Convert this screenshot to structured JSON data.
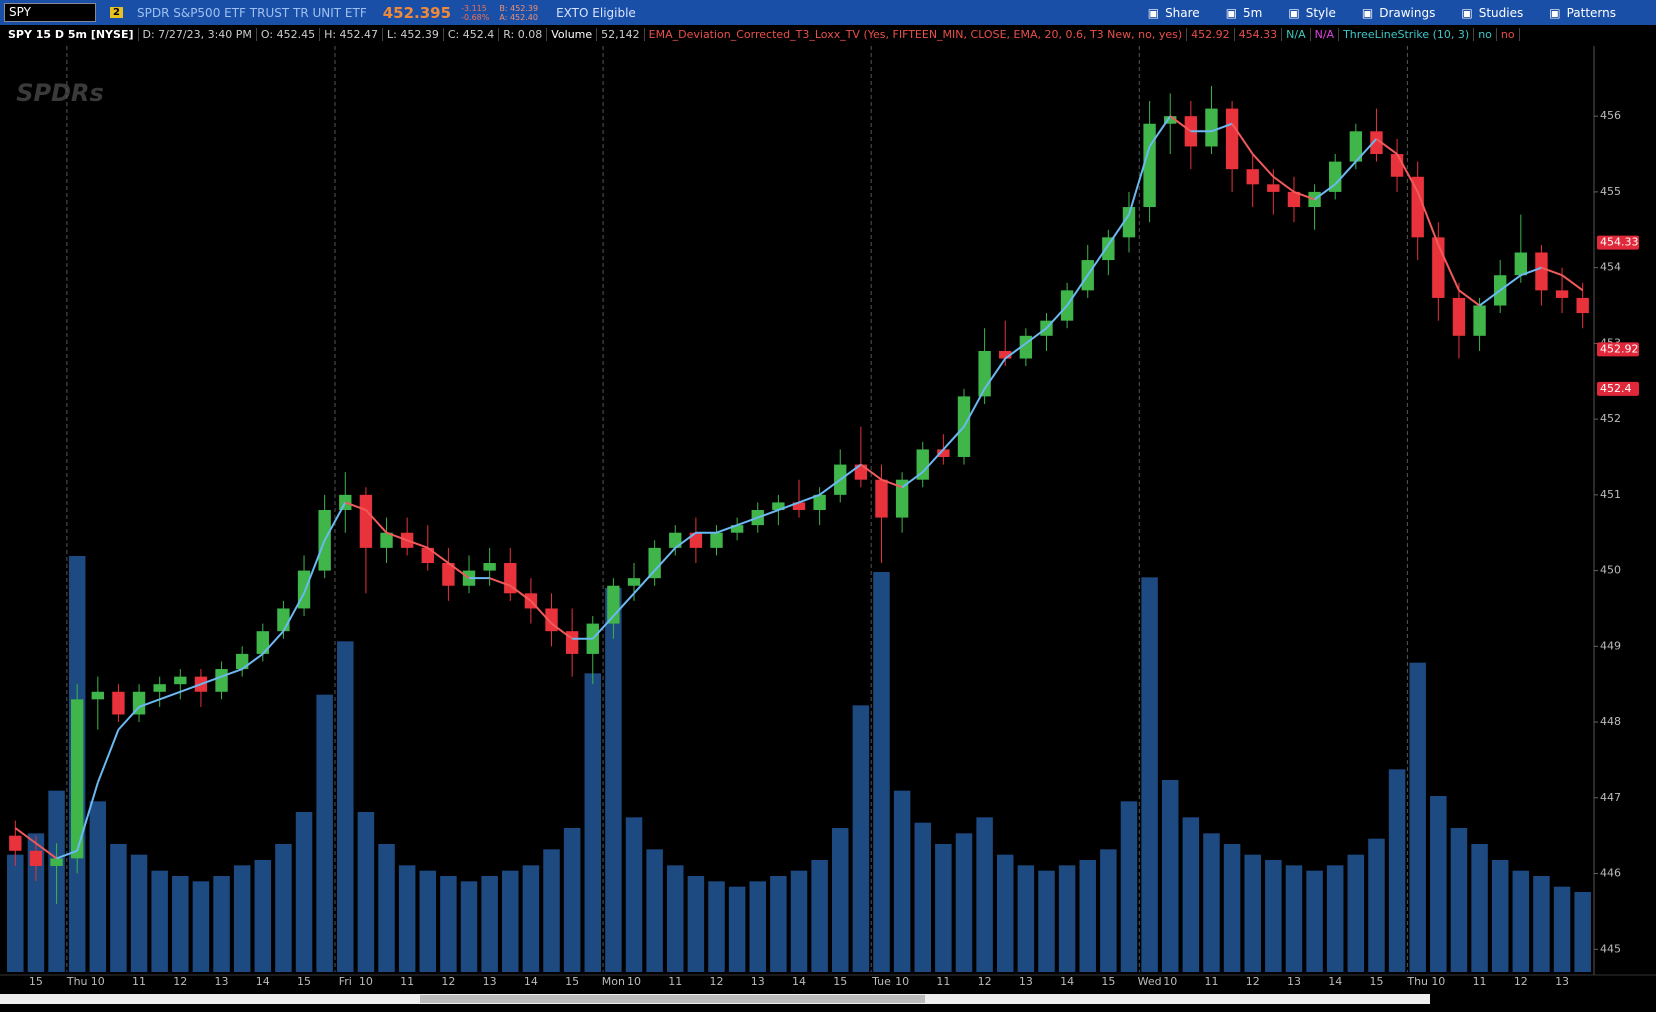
{
  "toolbar": {
    "symbol": "SPY",
    "link_badge": "2",
    "description": "SPDR S&P500 ETF TRUST TR UNIT ETF",
    "last": "452.395",
    "change": "-3.115",
    "change_pct": "-0.68%",
    "bid": "B: 452.39",
    "ask": "A: 452.40",
    "exto": "EXTO Eligible",
    "buttons": [
      "Share",
      "5m",
      "Style",
      "Drawings",
      "Studies",
      "Patterns"
    ]
  },
  "info_bar": {
    "symbol": "SPY 15 D 5m [NYSE]",
    "items": [
      "D: 7/27/23, 3:40 PM",
      "O: 452.45",
      "H: 452.47",
      "L: 452.39",
      "C: 452.4",
      "R: 0.08"
    ],
    "volume_label": "Volume",
    "volume_value": "52,142",
    "study": "EMA_Deviation_Corrected_T3_Loxx_TV (Yes, FIFTEEN_MIN, CLOSE, EMA, 20, 0.6, T3 New, no, yes)",
    "study_values": [
      "452.92",
      "454.33"
    ],
    "na": [
      "N/A",
      "N/A"
    ],
    "strike": "ThreeLineStrike (10, 3)",
    "strike_values": [
      "no",
      "no"
    ]
  },
  "watermark": "SPDRs",
  "chart_data": {
    "type": "candlestick",
    "categories": [
      null,
      "15",
      null,
      "Thu",
      "10",
      null,
      "11",
      null,
      "12",
      null,
      "13",
      null,
      "14",
      null,
      "15",
      null,
      "Fri",
      "10",
      null,
      "11",
      null,
      "12",
      null,
      "13",
      null,
      "14",
      null,
      "15",
      null,
      "Mon",
      "10",
      null,
      "11",
      null,
      "12",
      null,
      "13",
      null,
      "14",
      null,
      "15",
      null,
      "Tue",
      "10",
      null,
      "11",
      null,
      "12",
      null,
      "13",
      null,
      "14",
      null,
      "15",
      null,
      "Wed",
      "10",
      null,
      "11",
      null,
      "12",
      null,
      "13",
      null,
      "14",
      null,
      "15",
      null,
      "Thu",
      "10",
      null,
      "11",
      null,
      "12",
      null,
      "13",
      null
    ],
    "open": [
      446.5,
      446.3,
      446.1,
      446.2,
      448.3,
      448.4,
      448.1,
      448.4,
      448.5,
      448.6,
      448.4,
      448.7,
      448.9,
      449.2,
      449.5,
      450.0,
      450.8,
      451.0,
      450.3,
      450.5,
      450.3,
      450.1,
      449.8,
      450.0,
      450.1,
      449.7,
      449.5,
      449.2,
      448.9,
      449.3,
      449.8,
      449.9,
      450.3,
      450.5,
      450.3,
      450.5,
      450.6,
      450.8,
      450.9,
      450.8,
      451.0,
      451.4,
      451.2,
      450.7,
      451.2,
      451.6,
      451.5,
      452.3,
      452.9,
      452.8,
      453.1,
      453.3,
      453.7,
      454.1,
      454.4,
      454.8,
      455.9,
      456.0,
      455.6,
      456.1,
      455.3,
      455.1,
      455.0,
      454.8,
      455.0,
      455.4,
      455.8,
      455.5,
      455.2,
      454.4,
      453.6,
      453.1,
      453.5,
      453.9,
      454.2,
      453.7,
      453.6
    ],
    "high": [
      446.7,
      446.5,
      446.4,
      448.5,
      448.6,
      448.5,
      448.5,
      448.6,
      448.7,
      448.7,
      448.8,
      449.0,
      449.3,
      449.6,
      450.2,
      451.0,
      451.3,
      451.1,
      450.7,
      450.7,
      450.6,
      450.3,
      450.2,
      450.3,
      450.3,
      449.9,
      449.7,
      449.5,
      449.4,
      449.9,
      450.1,
      450.4,
      450.6,
      450.7,
      450.6,
      450.7,
      450.9,
      451.0,
      451.2,
      451.1,
      451.6,
      451.9,
      451.4,
      451.3,
      451.7,
      451.8,
      452.4,
      453.2,
      453.3,
      453.2,
      453.4,
      453.8,
      454.3,
      454.5,
      455.0,
      456.2,
      456.3,
      456.2,
      456.4,
      456.2,
      455.5,
      455.3,
      455.2,
      455.1,
      455.5,
      455.9,
      456.1,
      455.7,
      455.4,
      454.6,
      453.8,
      453.6,
      454.1,
      454.7,
      454.3,
      454.0,
      453.8
    ],
    "low": [
      446.1,
      445.9,
      445.6,
      446.0,
      447.9,
      448.0,
      448.0,
      448.2,
      448.3,
      448.2,
      448.3,
      448.6,
      448.8,
      449.1,
      449.4,
      449.9,
      450.5,
      449.7,
      450.1,
      450.2,
      450.0,
      449.6,
      449.7,
      449.8,
      449.6,
      449.3,
      449.0,
      448.6,
      448.5,
      449.1,
      449.6,
      449.8,
      450.2,
      450.1,
      450.2,
      450.4,
      450.5,
      450.6,
      450.7,
      450.6,
      450.9,
      451.1,
      450.1,
      450.5,
      451.1,
      451.4,
      451.4,
      452.2,
      452.7,
      452.7,
      452.9,
      453.2,
      453.6,
      453.9,
      454.2,
      454.6,
      455.5,
      455.3,
      455.5,
      455.0,
      454.8,
      454.7,
      454.6,
      454.5,
      454.9,
      455.3,
      455.4,
      455.0,
      454.1,
      453.3,
      452.8,
      452.9,
      453.4,
      453.8,
      453.5,
      453.4,
      453.2
    ],
    "close": [
      446.3,
      446.1,
      446.2,
      448.3,
      448.4,
      448.1,
      448.4,
      448.5,
      448.6,
      448.4,
      448.7,
      448.9,
      449.2,
      449.5,
      450.0,
      450.8,
      451.0,
      450.3,
      450.5,
      450.3,
      450.1,
      449.8,
      450.0,
      450.1,
      449.7,
      449.5,
      449.2,
      448.9,
      449.3,
      449.8,
      449.9,
      450.3,
      450.5,
      450.3,
      450.5,
      450.6,
      450.8,
      450.9,
      450.8,
      451.0,
      451.4,
      451.2,
      450.7,
      451.2,
      451.6,
      451.5,
      452.3,
      452.9,
      452.8,
      453.1,
      453.3,
      453.7,
      454.1,
      454.4,
      454.8,
      455.9,
      456.0,
      455.6,
      456.1,
      455.3,
      455.1,
      455.0,
      454.8,
      455.0,
      455.4,
      455.8,
      455.5,
      455.2,
      454.4,
      453.6,
      453.1,
      453.5,
      453.9,
      454.2,
      453.7,
      453.6,
      453.4
    ],
    "up_color": "#3fb54a",
    "down_color": "#e8323c",
    "t3": [
      446.6,
      446.4,
      446.2,
      446.3,
      447.2,
      447.9,
      448.2,
      448.3,
      448.4,
      448.5,
      448.6,
      448.7,
      448.9,
      449.2,
      449.7,
      450.4,
      450.9,
      450.8,
      450.5,
      450.4,
      450.3,
      450.1,
      449.9,
      449.9,
      449.8,
      449.6,
      449.3,
      449.1,
      449.1,
      449.4,
      449.7,
      450.0,
      450.3,
      450.5,
      450.5,
      450.6,
      450.7,
      450.8,
      450.9,
      451.0,
      451.2,
      451.4,
      451.2,
      451.1,
      451.3,
      451.6,
      451.9,
      452.4,
      452.8,
      453.0,
      453.2,
      453.5,
      453.9,
      454.3,
      454.7,
      455.6,
      456.0,
      455.8,
      455.8,
      455.9,
      455.5,
      455.2,
      455.0,
      454.9,
      455.1,
      455.4,
      455.7,
      455.5,
      455.0,
      454.3,
      453.7,
      453.5,
      453.7,
      453.9,
      454.0,
      453.9,
      453.7
    ],
    "t3_up_color": "#6cb8f2",
    "t3_down_color": "#f05a5a",
    "volume": [
      2200,
      2600,
      3400,
      7800,
      3200,
      2400,
      2200,
      1900,
      1800,
      1700,
      1800,
      2000,
      2100,
      2400,
      3000,
      5200,
      6200,
      3000,
      2400,
      2000,
      1900,
      1800,
      1700,
      1800,
      1900,
      2000,
      2300,
      2700,
      5600,
      7200,
      2900,
      2300,
      2000,
      1800,
      1700,
      1600,
      1700,
      1800,
      1900,
      2100,
      2700,
      5000,
      7500,
      3400,
      2800,
      2400,
      2600,
      2900,
      2200,
      2000,
      1900,
      2000,
      2100,
      2300,
      3200,
      7400,
      3600,
      2900,
      2600,
      2400,
      2200,
      2100,
      2000,
      1900,
      2000,
      2200,
      2500,
      3800,
      5800,
      3300,
      2700,
      2400,
      2100,
      1900,
      1800,
      1600,
      1500
    ],
    "volume_color": "#1d4a80",
    "vlim": [
      0,
      9000
    ],
    "ylim": [
      444.7,
      456.9
    ],
    "yticks": [
      445,
      446,
      447,
      448,
      449,
      450,
      451,
      452,
      453,
      454,
      455,
      456
    ],
    "price_markers": [
      454.33,
      452.92,
      452.4
    ],
    "price_marker_color": "#e0283a",
    "grid": false
  }
}
